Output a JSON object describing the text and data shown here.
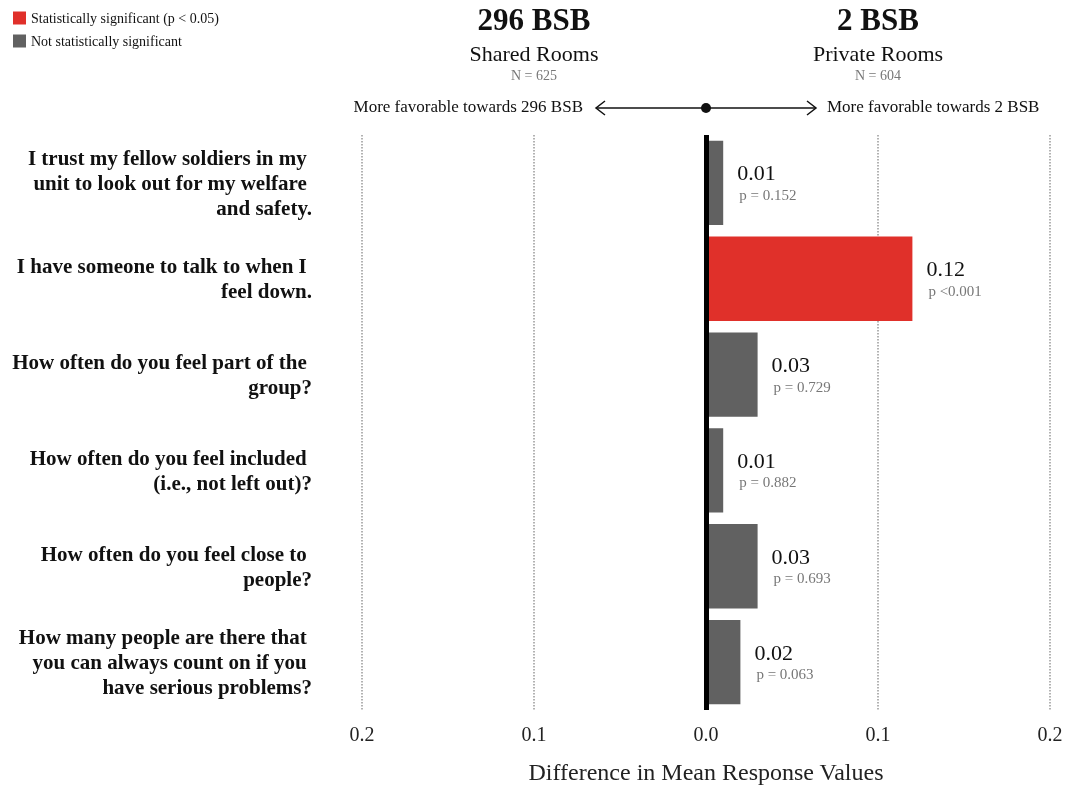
{
  "chart_data": {
    "type": "bar",
    "orientation": "horizontal",
    "stacked": true,
    "categories": [
      "I trust my fellow soldiers in my unit to look out for my welfare and safety.",
      "I have someone to talk to when I feel down.",
      "How often do you feel part of the group?",
      "How often do you feel included (i.e., not left out)?",
      "How often do you feel close to people?",
      "How many people are there that you can always count on if you have serious problems?"
    ],
    "series": [
      {
        "name": "Statistically significant (p < 0.05)",
        "color": "#e0302a",
        "values": [
          null,
          0.12,
          null,
          null,
          null,
          null
        ]
      },
      {
        "name": "Not statistically significant",
        "color": "#616161",
        "values": [
          0.01,
          null,
          0.03,
          0.01,
          0.03,
          0.02
        ]
      }
    ],
    "data_labels": true,
    "xlim": [
      -0.2,
      0.2
    ],
    "xticks": [
      {
        "value": -0.2,
        "label": "0.2"
      },
      {
        "value": -0.1,
        "label": "0.1"
      },
      {
        "value": 0,
        "label": "0.0"
      },
      0.1,
      0.2
    ],
    "xlabel": "Difference in Mean Response Values",
    "grid": "x",
    "legend": "top left",
    "ref_lines": [
      {
        "axis": "x",
        "value": 0,
        "color": "#000000"
      }
    ],
    "annotations": [
      "296 BSB",
      "Shared Rooms",
      "N = 625",
      "2 BSB",
      "Private Rooms",
      "N = 604",
      "More favorable towards 296 BSB",
      "More favorable towards 2 BSB",
      {
        "text": "p = 0.152",
        "x": 0.01,
        "y": "I trust my fellow soldiers in my unit to look out for my welfare and safety."
      },
      {
        "text": "p <0.001",
        "x": 0.12,
        "y": "I have someone to talk to when I feel down."
      },
      {
        "text": "p = 0.729",
        "x": 0.03,
        "y": "How often do you feel part of the group?"
      },
      {
        "text": "p = 0.882",
        "x": 0.01,
        "y": "How often do you feel included (i.e., not left out)?"
      },
      {
        "text": "p = 0.693",
        "x": 0.03,
        "y": "How often do you feel close to people?"
      },
      {
        "text": "p = 0.063",
        "x": 0.02,
        "y": "How many people are there that you can always count on if you have serious problems?"
      }
    ]
  }
}
